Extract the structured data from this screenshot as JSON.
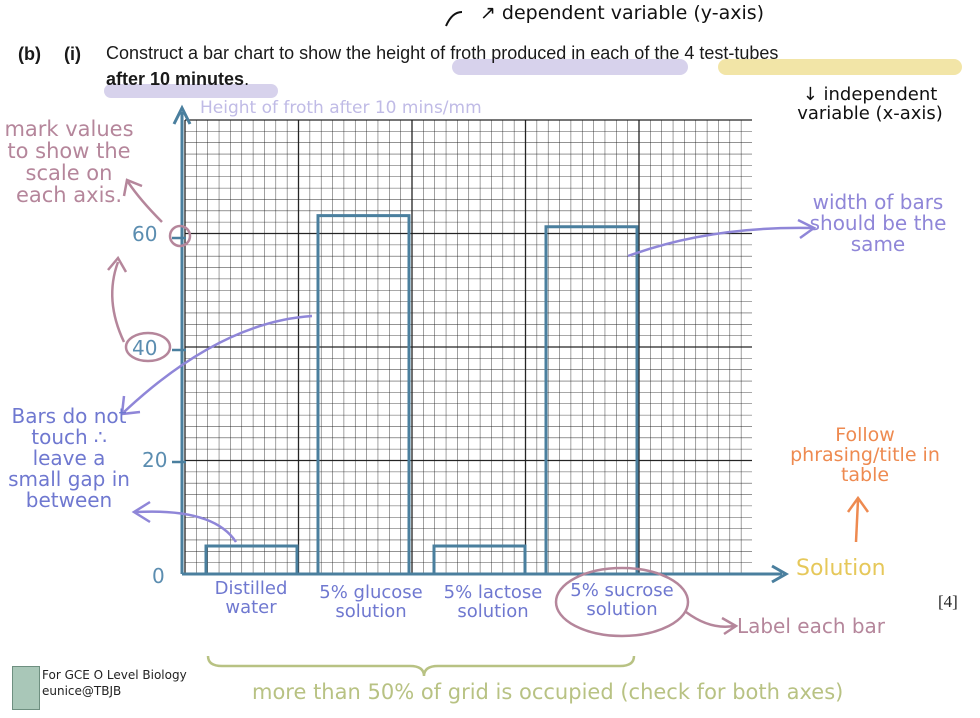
{
  "question": {
    "part": "(b)",
    "subpart": "(i)",
    "line1": "Construct a bar chart to show the height of froth produced in each of the 4 test-tubes",
    "line2_bold": "after 10 minutes",
    "line2_end": ".",
    "marks": "[4]"
  },
  "annotations": {
    "dependent": "↗ dependent variable (y-axis)",
    "independent": "↓ independent variable (x-axis)",
    "mark_values": "mark values to show the scale on each axis.",
    "width_bars": "width of bars should be the same",
    "bars_gap": "Bars do not touch ∴ leave a small gap in between",
    "follow_phrasing": "Follow phrasing/title in table",
    "label_each_bar": "Label each bar",
    "grid_occupied": "more than 50% of grid is occupied (check for both axes)",
    "footer_line1": "For GCE O Level Biology",
    "footer_line2": "eunice@TBJB"
  },
  "colors": {
    "axis": "#4a7f9e",
    "bar": "#4a7f9e",
    "grid": "#1a1a1a",
    "purple": "#8f86d8",
    "mauve": "#b5869b",
    "orange": "#ee8a50",
    "yellow": "#e6c85a",
    "olive": "#b8c283"
  },
  "chart_data": {
    "type": "bar",
    "ylabel": "Height of froth after 10 mins/mm",
    "xlabel": "Solution",
    "categories": [
      "Distilled water",
      "5% glucose solution",
      "5% lactose solution",
      "5% sucrose solution"
    ],
    "values": [
      5,
      64,
      5,
      62
    ],
    "ylim": [
      0,
      80
    ],
    "yticks": [
      0,
      20,
      40,
      60
    ],
    "ytick_labels": [
      "0",
      "20",
      "40",
      "60"
    ],
    "grid": true
  }
}
